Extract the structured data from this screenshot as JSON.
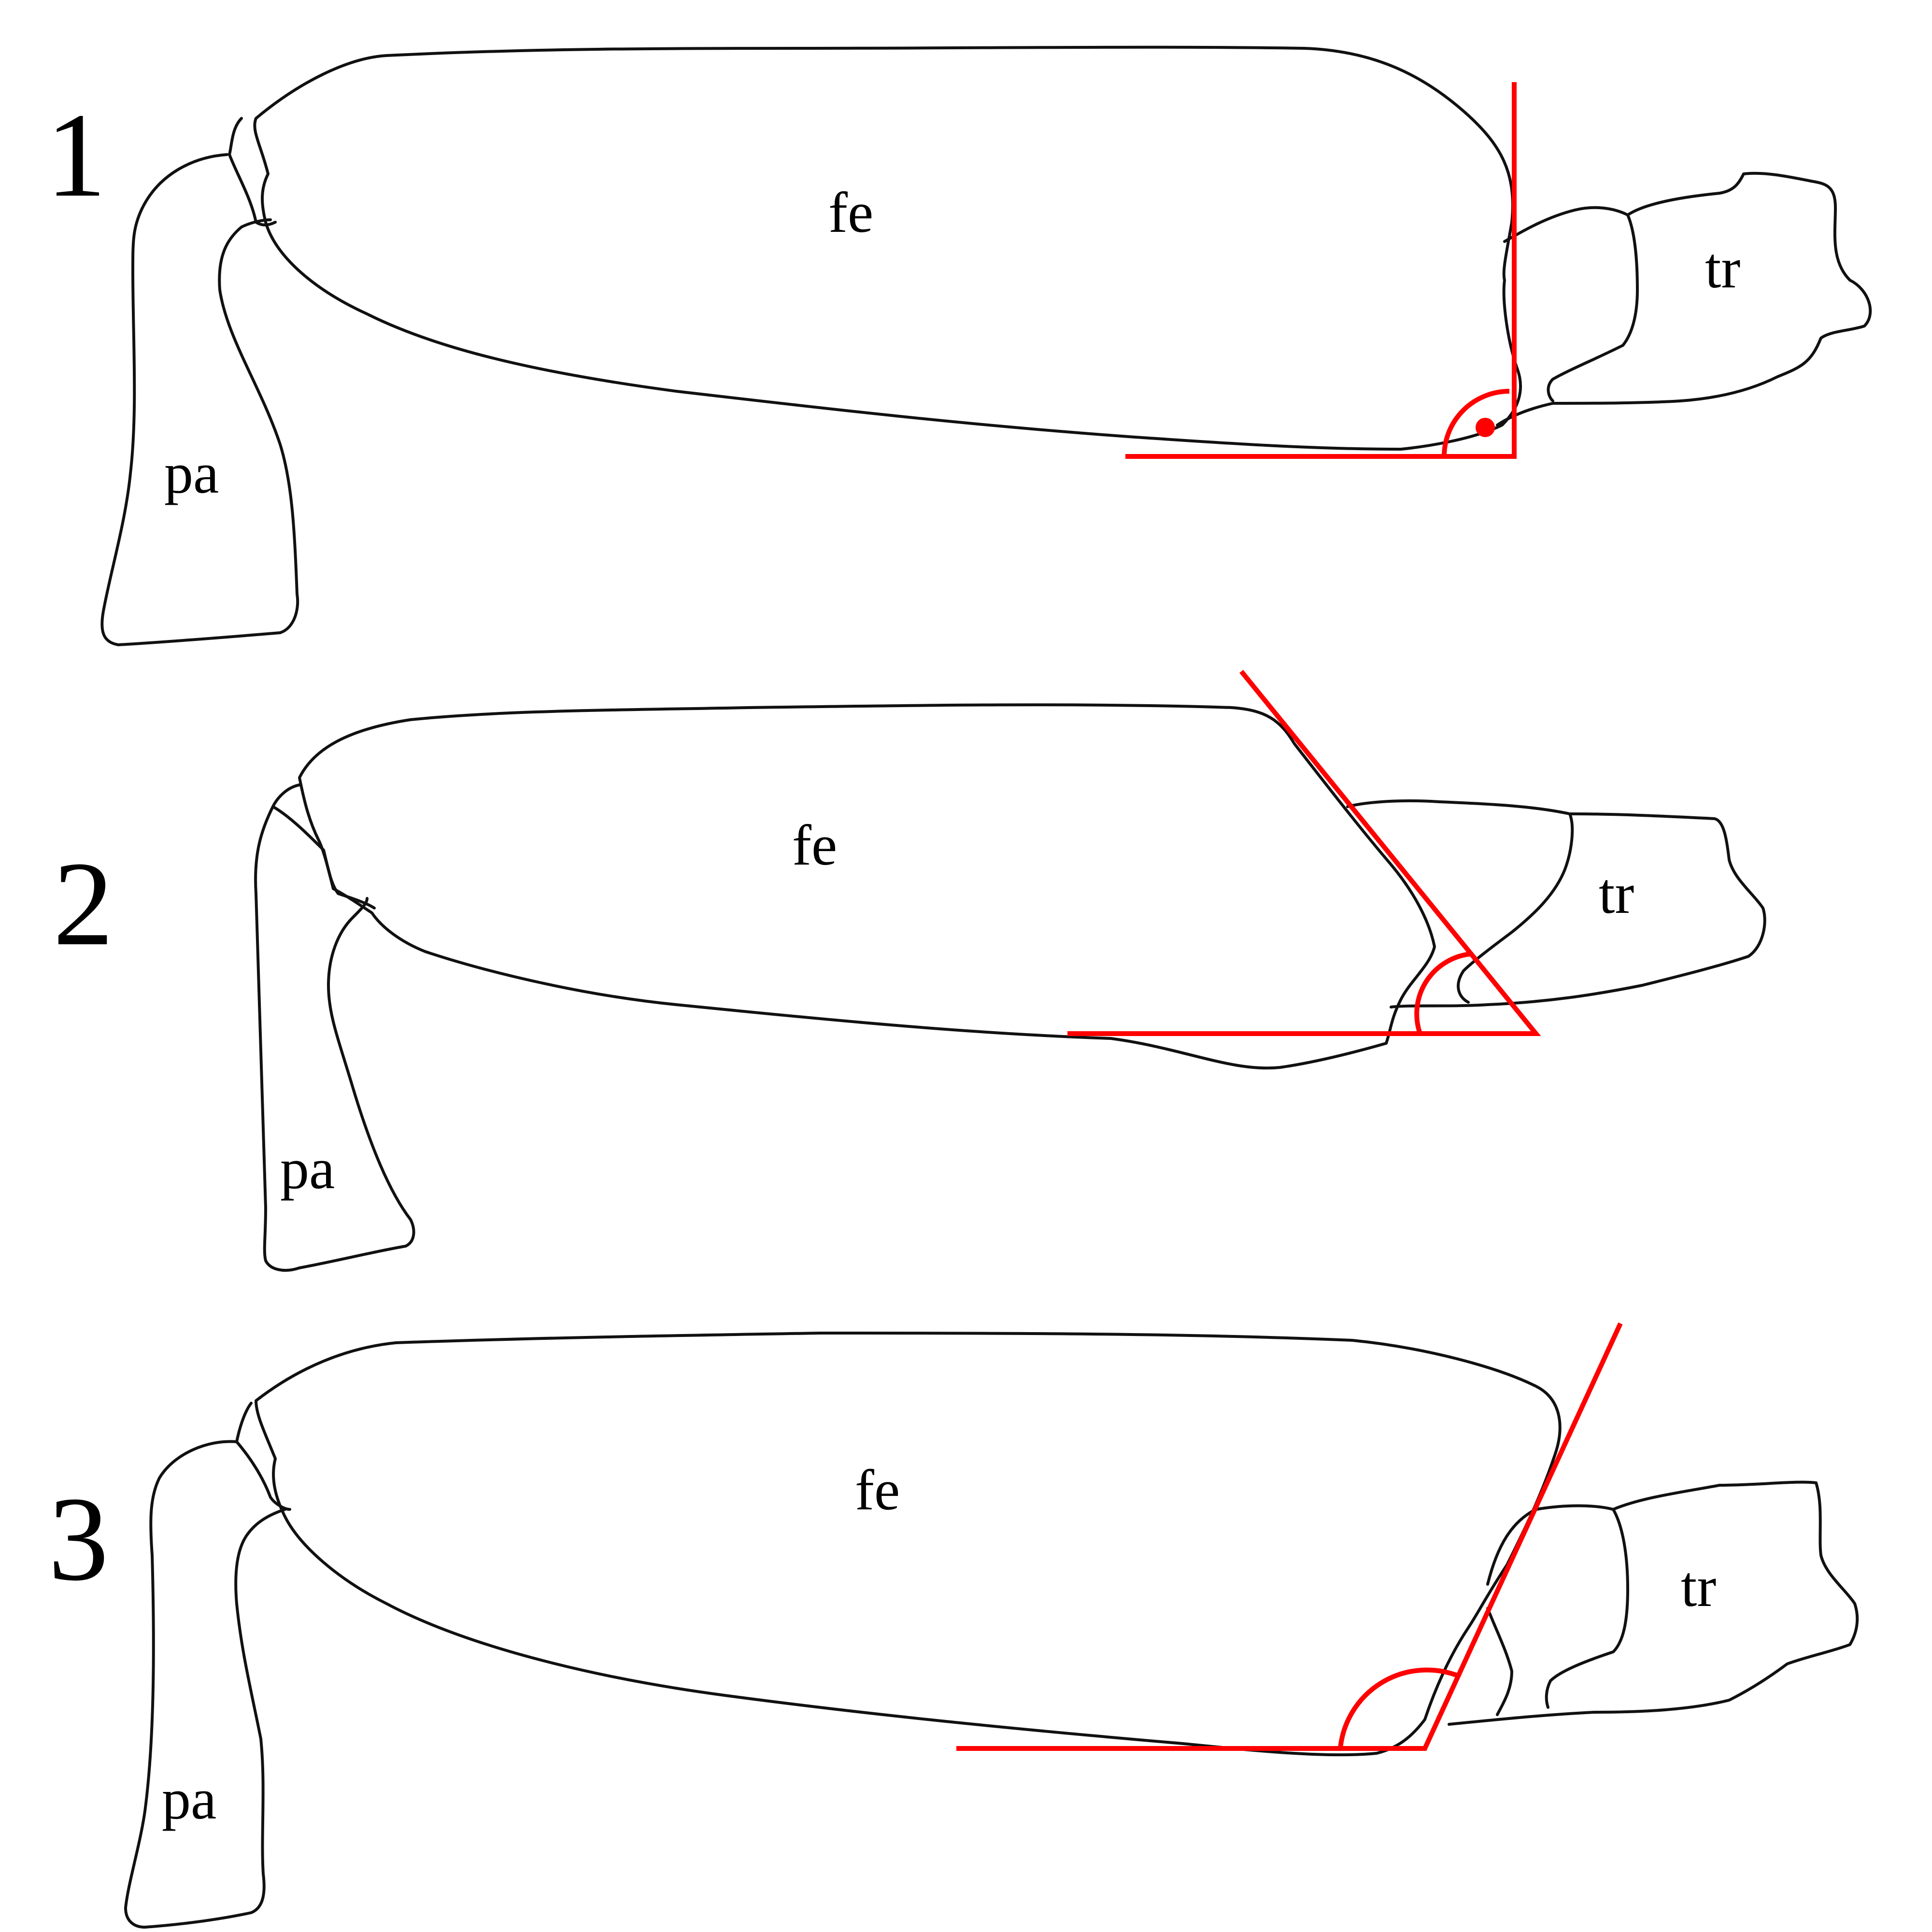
{
  "colors": {
    "outline": "#111111",
    "angle": "#ff0000",
    "background": "#ffffff"
  },
  "panels": [
    {
      "number": "1",
      "femur": "fe",
      "trochanter": "tr",
      "patella": "pa",
      "angle_marker": "right-angle-dot"
    },
    {
      "number": "2",
      "femur": "fe",
      "trochanter": "tr",
      "patella": "pa",
      "angle_marker": "acute-arc"
    },
    {
      "number": "3",
      "femur": "fe",
      "trochanter": "tr",
      "patella": "pa",
      "angle_marker": "obtuse-arc"
    }
  ]
}
